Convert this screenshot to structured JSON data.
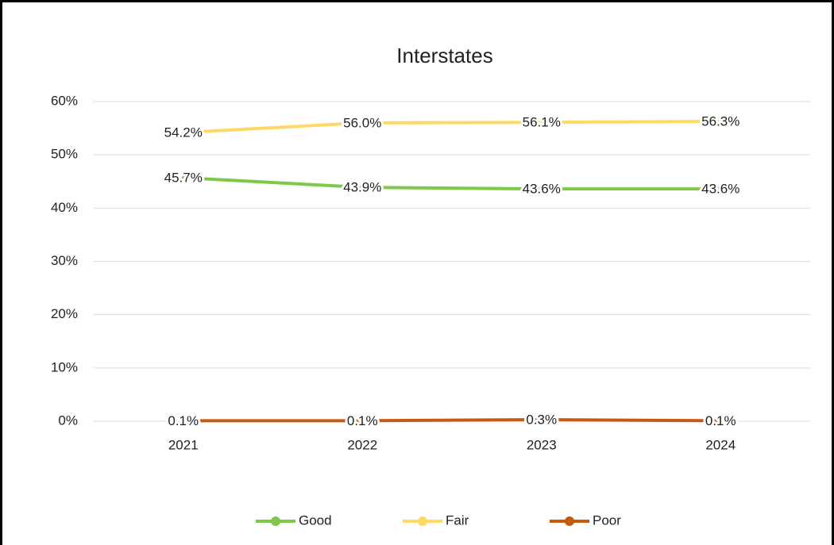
{
  "chart_data": {
    "type": "line",
    "title": "Interstates",
    "categories": [
      "2021",
      "2022",
      "2023",
      "2024"
    ],
    "series": [
      {
        "name": "Good",
        "color": "#7ec94a",
        "values": [
          45.7,
          43.9,
          43.6,
          43.6
        ],
        "value_labels": [
          "45.7%",
          "43.9%",
          "43.6%",
          "43.6%"
        ]
      },
      {
        "name": "Fair",
        "color": "#ffd966",
        "values": [
          54.2,
          56.0,
          56.1,
          56.3
        ],
        "value_labels": [
          "54.2%",
          "56.0%",
          "56.1%",
          "56.3%"
        ]
      },
      {
        "name": "Poor",
        "color": "#c55a11",
        "values": [
          0.1,
          0.1,
          0.3,
          0.1
        ],
        "value_labels": [
          "0.1%",
          "0.1%",
          "0.3%",
          "0.1%"
        ]
      }
    ],
    "ylim": [
      0,
      60
    ],
    "yticks": [
      {
        "value": 0,
        "label": "0%"
      },
      {
        "value": 10,
        "label": "10%"
      },
      {
        "value": 20,
        "label": "20%"
      },
      {
        "value": 30,
        "label": "30%"
      },
      {
        "value": 40,
        "label": "40%"
      },
      {
        "value": 50,
        "label": "50%"
      },
      {
        "value": 60,
        "label": "60%"
      }
    ],
    "grid": true,
    "legend": "bottom"
  }
}
